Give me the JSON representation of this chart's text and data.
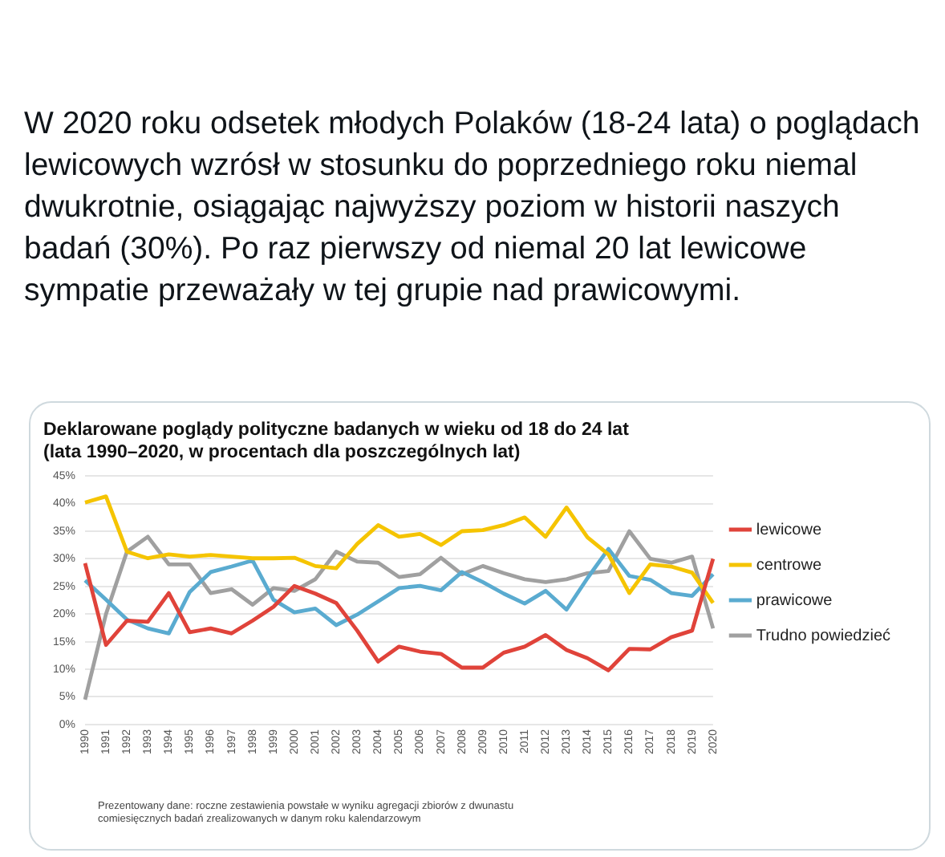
{
  "chart_data": {
    "type": "line",
    "title": [
      "Deklarowane poglądy polityczne badanych w wieku od 18 do 24 lat",
      "(lata 1990–2020, w procentach dla poszczególnych lat)"
    ],
    "annotations": [
      "W 2020 roku odsetek młodych Polaków (18-24 lata) o poglądach lewicowych wzrósł w stosunku do poprzedniego roku niemal dwukrotnie, osiągając najwyższy poziom w historii naszych badań (30%). Po raz pierwszy od niemal 20 lat lewicowe sympatie przeważały w tej grupie nad prawicowymi.",
      "Prezentowany dane: roczne zestawienia powstałe w wyniku agregacji zbiorów z dwunastu comiesięcznych badań zrealizowanych w danym roku kalendarzowym"
    ],
    "categories": [
      "1990",
      "1991",
      "1992",
      "1993",
      "1994",
      "1995",
      "1996",
      "1997",
      "1998",
      "1999",
      "2000",
      "2001",
      "2002",
      "2003",
      "2004",
      "2005",
      "2006",
      "2007",
      "2008",
      "2009",
      "2010",
      "2011",
      "2012",
      "2013",
      "2014",
      "2015",
      "2016",
      "2017",
      "2018",
      "2019",
      "2020"
    ],
    "series": [
      {
        "name": "lewicowe",
        "color": "#e0433a",
        "values": [
          29.2,
          14.4,
          18.8,
          18.6,
          23.8,
          16.7,
          17.4,
          16.5,
          18.8,
          21.3,
          25.1,
          23.7,
          22.0,
          17.0,
          11.4,
          14.1,
          13.2,
          12.8,
          10.3,
          10.3,
          13.0,
          14.1,
          16.2,
          13.5,
          12.0,
          9.8,
          13.7,
          13.6,
          15.8,
          17.0,
          30.0
        ]
      },
      {
        "name": "centrowe",
        "color": "#f5c400",
        "values": [
          40.2,
          41.3,
          31.3,
          30.1,
          30.8,
          30.4,
          30.7,
          30.4,
          30.1,
          30.1,
          30.2,
          28.7,
          28.3,
          32.7,
          36.1,
          34.0,
          34.5,
          32.5,
          35.0,
          35.2,
          36.1,
          37.5,
          34.0,
          39.3,
          33.9,
          30.8,
          23.8,
          29.0,
          28.6,
          27.5,
          22.0
        ]
      },
      {
        "name": "prawicowe",
        "color": "#5aabd0",
        "values": [
          26.1,
          22.6,
          19.0,
          17.4,
          16.5,
          24.0,
          27.6,
          28.6,
          29.7,
          22.6,
          20.3,
          21.0,
          18.0,
          19.9,
          22.3,
          24.7,
          25.1,
          24.3,
          27.6,
          25.8,
          23.7,
          21.9,
          24.2,
          20.8,
          26.5,
          31.8,
          26.9,
          26.2,
          23.8,
          23.3,
          27.2
        ]
      },
      {
        "name": "Trudno powiedzieć",
        "color": "#a0a0a0",
        "values": [
          4.5,
          20.0,
          31.3,
          34.0,
          29.0,
          29.0,
          23.8,
          24.5,
          21.7,
          24.7,
          24.2,
          26.3,
          31.3,
          29.5,
          29.3,
          26.7,
          27.2,
          30.2,
          27.2,
          28.7,
          27.4,
          26.3,
          25.8,
          26.3,
          27.4,
          27.8,
          35.0,
          30.0,
          29.3,
          30.4,
          17.4
        ]
      }
    ],
    "ylim": [
      0,
      45
    ],
    "yticks": [
      {
        "value": 0,
        "label": "0%"
      },
      {
        "value": 5,
        "label": "5%"
      },
      {
        "value": 10,
        "label": "10%"
      },
      {
        "value": 15,
        "label": "15%"
      },
      {
        "value": 20,
        "label": "20%"
      },
      {
        "value": 25,
        "label": "25%"
      },
      {
        "value": 30,
        "label": "30%"
      },
      {
        "value": 35,
        "label": "35%"
      },
      {
        "value": 40,
        "label": "40%"
      },
      {
        "value": 45,
        "label": "45%"
      }
    ],
    "grid": "y",
    "legend": "right"
  }
}
